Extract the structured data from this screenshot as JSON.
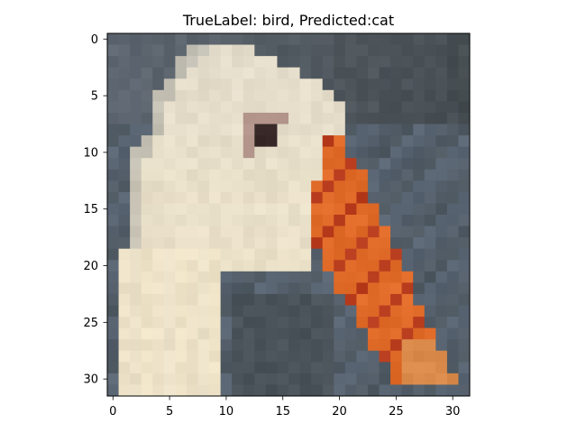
{
  "chart_data": {
    "type": "image",
    "title": "TrueLabel: bird, Predicted:cat",
    "xlabel": "",
    "ylabel": "",
    "image_size": [
      32,
      32
    ],
    "xlim": [
      -0.5,
      31.5
    ],
    "ylim": [
      31.5,
      -0.5
    ],
    "xticks": [
      0,
      5,
      10,
      15,
      20,
      25,
      30
    ],
    "yticks": [
      0,
      5,
      10,
      15,
      20,
      25,
      30
    ],
    "grid": false,
    "colors": {
      "background_slate": "#5f6872",
      "background_dark": "#3f4548",
      "background_blue_gray": "#5a6674",
      "feather_cream": "#e3dccb",
      "neck_cream": "#efe3c7",
      "beak_orange": "#e06a28",
      "beak_red": "#b83d1e",
      "beak_tip": "#d98a4a",
      "eye_dark": "#3a2a2a",
      "eye_ring": "#b89a90"
    }
  }
}
